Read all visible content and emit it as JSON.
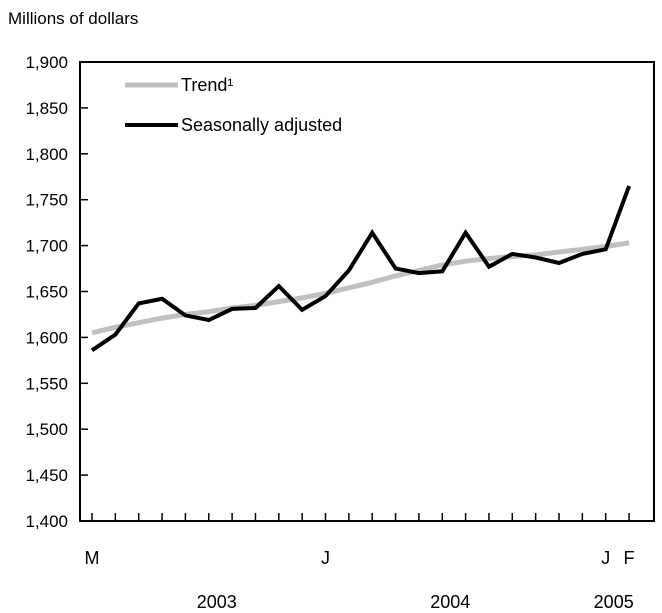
{
  "chart_data": {
    "type": "line",
    "ylabel": "Millions of dollars",
    "ylim": [
      1400,
      1900
    ],
    "y_ticks": [
      1400,
      1450,
      1500,
      1550,
      1600,
      1650,
      1700,
      1750,
      1800,
      1850,
      1900
    ],
    "y_tick_labels": [
      "1,400",
      "1,450",
      "1,500",
      "1,550",
      "1,600",
      "1,650",
      "1,700",
      "1,750",
      "1,800",
      "1,850",
      "1,900"
    ],
    "x": [
      "2003-03",
      "2003-04",
      "2003-05",
      "2003-06",
      "2003-07",
      "2003-08",
      "2003-09",
      "2003-10",
      "2003-11",
      "2003-12",
      "2004-01",
      "2004-02",
      "2004-03",
      "2004-04",
      "2004-05",
      "2004-06",
      "2004-07",
      "2004-08",
      "2004-09",
      "2004-10",
      "2004-11",
      "2004-12",
      "2005-01",
      "2005-02"
    ],
    "month_labels": [
      {
        "x": "2003-03",
        "label": "M"
      },
      {
        "x": "2004-01",
        "label": "J"
      },
      {
        "x": "2005-01",
        "label": "J"
      },
      {
        "x": "2005-02",
        "label": "F"
      }
    ],
    "year_labels": [
      {
        "x": "2003-08",
        "label": "2003"
      },
      {
        "x": "2004-06",
        "label": "2004"
      },
      {
        "x": "2005-01",
        "label": "2005"
      }
    ],
    "legend_position": "top-left",
    "grid": false,
    "series": [
      {
        "name": "Trend¹",
        "color": "#c0c0c0",
        "values": [
          1605,
          1611,
          1616,
          1621,
          1625,
          1628,
          1632,
          1635,
          1639,
          1643,
          1648,
          1654,
          1660,
          1667,
          1673,
          1679,
          1683,
          1686,
          1688,
          1690,
          1693,
          1696,
          1699,
          1703
        ]
      },
      {
        "name": "Seasonally adjusted",
        "color": "#000000",
        "values": [
          1586,
          1603,
          1637,
          1642,
          1624,
          1619,
          1631,
          1632,
          1656,
          1630,
          1645,
          1673,
          1714,
          1675,
          1670,
          1672,
          1714,
          1677,
          1691,
          1687,
          1681,
          1691,
          1696,
          1765
        ]
      }
    ]
  }
}
